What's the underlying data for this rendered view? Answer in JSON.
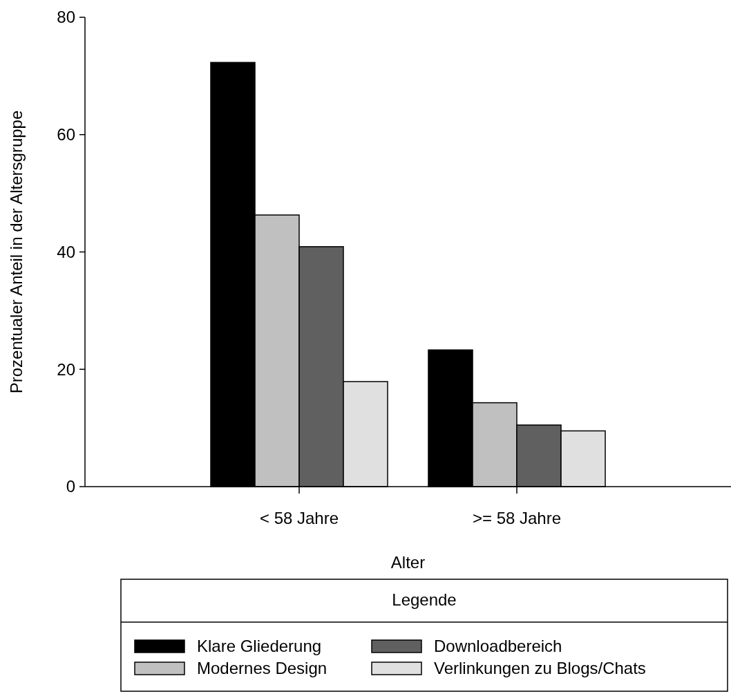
{
  "chart_data": {
    "type": "bar",
    "xlabel": "Alter",
    "ylabel": "Prozentualer Anteil in der Altersgruppe",
    "legend_title": "Legende",
    "legend": "bottom",
    "categories": [
      "< 58 Jahre",
      ">= 58 Jahre"
    ],
    "ylim": [
      0,
      80
    ],
    "yticks": [
      0,
      20,
      40,
      60,
      80
    ],
    "series": [
      {
        "name": "Klare Gliederung",
        "color": "#000000",
        "values": [
          72.3,
          23.3
        ]
      },
      {
        "name": "Modernes Design",
        "color": "#c0c0c0",
        "values": [
          46.3,
          14.3
        ]
      },
      {
        "name": "Downloadbereich",
        "color": "#606060",
        "values": [
          40.9,
          10.5
        ]
      },
      {
        "name": "Verlinkungen zu Blogs/Chats",
        "color": "#e0e0e0",
        "values": [
          17.9,
          9.5
        ]
      }
    ]
  }
}
